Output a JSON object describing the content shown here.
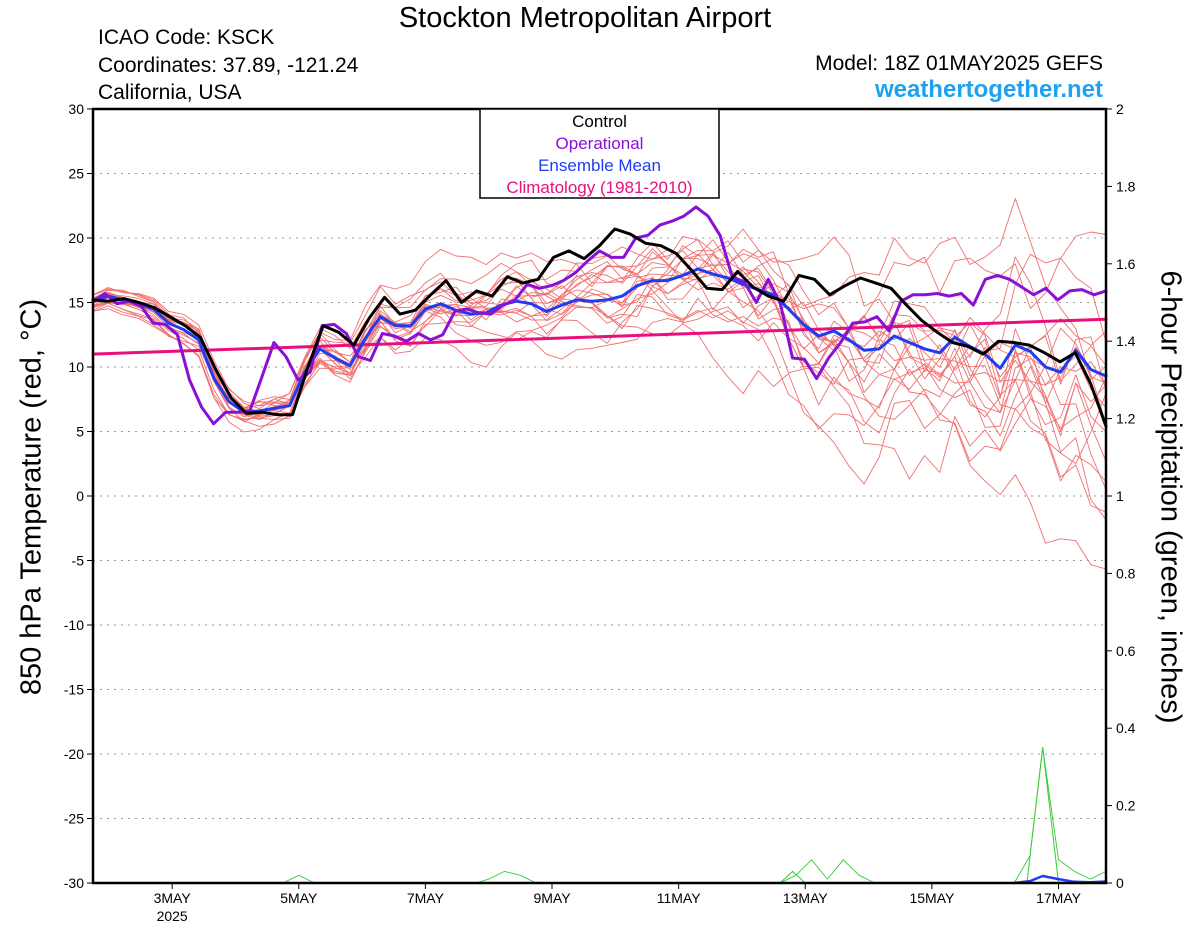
{
  "header": {
    "title": "Stockton Metropolitan Airport",
    "icao": "ICAO Code: KSCK",
    "coords": "Coordinates: 37.89, -121.24",
    "region": "California, USA",
    "model": "Model: 18Z 01MAY2025 GEFS",
    "site": "weathertogether.net"
  },
  "chart_data": {
    "type": "line",
    "title": "Stockton Metropolitan Airport",
    "ylabel": "850 hPa Temperature (red, °C)",
    "y2label": "6-hour Precipitation (green, inches)",
    "x_start_day": 1.75,
    "x_end_day": 17.75,
    "ylim": [
      -30,
      30
    ],
    "y_ticks": [
      30,
      25,
      20,
      15,
      10,
      5,
      0,
      -5,
      -10,
      -15,
      -20,
      -25,
      -30
    ],
    "y2lim": [
      0,
      2
    ],
    "y2_ticks": [
      2,
      1.8,
      1.6,
      1.4,
      1.2,
      1,
      0.8,
      0.6,
      0.4,
      0.2,
      0
    ],
    "x_ticks": [
      {
        "day": 3,
        "label": "3MAY",
        "sub": "2025"
      },
      {
        "day": 5,
        "label": "5MAY"
      },
      {
        "day": 7,
        "label": "7MAY"
      },
      {
        "day": 9,
        "label": "9MAY"
      },
      {
        "day": 11,
        "label": "11MAY"
      },
      {
        "day": 13,
        "label": "13MAY"
      },
      {
        "day": 15,
        "label": "15MAY"
      },
      {
        "day": 17,
        "label": "17MAY"
      }
    ],
    "legend": {
      "position": "top-center",
      "entries": [
        {
          "label": "Control",
          "color": "#000000"
        },
        {
          "label": "Operational",
          "color": "#8a10d6"
        },
        {
          "label": "Ensemble Mean",
          "color": "#1f3df0"
        },
        {
          "label": "Climatology (1981-2010)",
          "color": "#e8107e"
        }
      ]
    },
    "grid": "dotted horizontal",
    "colors": {
      "members": "#f07070",
      "control": "#000000",
      "operational": "#8a10d6",
      "mean": "#1f3df0",
      "climatology": "#e8107e",
      "precip": "#33cc33"
    },
    "control": [
      15.2,
      15.1,
      15.3,
      15.0,
      14.6,
      13.9,
      13.2,
      12.3,
      9.8,
      7.6,
      6.4,
      6.5,
      6.3,
      6.3,
      10.0,
      13.2,
      12.7,
      11.7,
      13.8,
      15.4,
      14.1,
      14.4,
      15.6,
      16.7,
      15.0,
      15.9,
      15.5,
      17.0,
      16.5,
      16.8,
      18.5,
      19.0,
      18.4,
      19.4,
      20.7,
      20.3,
      19.6,
      19.4,
      18.8,
      17.5,
      16.1,
      16.0,
      17.4,
      16.2,
      15.5,
      15.1,
      17.1,
      16.8,
      15.6,
      16.3,
      16.9,
      16.5,
      16.1,
      14.8,
      13.6,
      12.7,
      11.9,
      11.6,
      11.0,
      12.0,
      11.9,
      11.7,
      11.1,
      10.4,
      11.1,
      8.7,
      5.4
    ],
    "operational": [
      15.1,
      15.7,
      14.9,
      15.1,
      14.7,
      13.4,
      13.3,
      12.5,
      9.0,
      6.9,
      5.6,
      6.5,
      6.5,
      6.6,
      9.2,
      11.9,
      10.8,
      9.0,
      9.6,
      13.2,
      13.3,
      12.6,
      10.8,
      10.5,
      12.6,
      12.4,
      12.0,
      12.6,
      12.1,
      12.5,
      14.3,
      14.5,
      14.2,
      14.1,
      14.8,
      15.2,
      16.4,
      16.1,
      16.3,
      16.7,
      17.3,
      18.2,
      19.0,
      18.5,
      18.5,
      20.0,
      20.2,
      21.0,
      21.3,
      21.7,
      22.4,
      21.7,
      20.2,
      17.0,
      16.6,
      15.0,
      16.8,
      14.9,
      10.7,
      10.6,
      9.1,
      10.7,
      11.9,
      13.4,
      13.5,
      13.9,
      12.8,
      15.1,
      15.6,
      15.6,
      15.7,
      15.5,
      15.7,
      14.8,
      16.8,
      17.1,
      16.8,
      16.2,
      15.6,
      16.1,
      15.2,
      15.9,
      16.0,
      15.6,
      15.9
    ],
    "mean": [
      15.1,
      15.5,
      15.2,
      14.9,
      14.5,
      13.4,
      12.9,
      12.1,
      9.1,
      7.3,
      6.5,
      6.6,
      6.8,
      7.0,
      9.6,
      11.4,
      10.7,
      10.1,
      12.2,
      13.9,
      13.2,
      13.2,
      14.5,
      14.9,
      14.4,
      14.1,
      14.2,
      14.8,
      15.1,
      14.9,
      14.3,
      14.8,
      15.2,
      15.1,
      15.2,
      15.5,
      16.3,
      16.7,
      16.7,
      17.1,
      17.6,
      17.2,
      16.9,
      16.4,
      16.0,
      15.6,
      14.5,
      13.3,
      12.4,
      12.8,
      12.1,
      11.3,
      11.4,
      12.4,
      11.9,
      11.4,
      11.1,
      12.3,
      11.6,
      11.0,
      9.9,
      11.7,
      11.2,
      10.0,
      9.6,
      11.3,
      9.8,
      9.3
    ],
    "climatology_start": 11.0,
    "climatology_end": 13.7,
    "member_count": 20,
    "precip_operational": {
      "x": [
        1.75,
        2.5,
        3.0,
        3.25,
        3.5,
        5.5,
        5.75,
        6.0,
        8.0,
        8.25,
        8.5,
        12.6,
        12.8,
        13.0,
        13.2,
        13.4,
        13.6,
        13.8,
        14.0,
        16.5,
        16.75,
        17.0,
        17.25,
        17.5,
        17.75
      ],
      "y": [
        0,
        0,
        0,
        0,
        0,
        0,
        0,
        0,
        0,
        0,
        0,
        0,
        0.03,
        0,
        0,
        0,
        0,
        0,
        0,
        0,
        0.35,
        0,
        0,
        0,
        0
      ]
    },
    "precip_members": [
      {
        "x": [
          4.75,
          5.0,
          5.25,
          5.5
        ],
        "y": [
          0,
          0.02,
          0,
          0
        ]
      },
      {
        "x": [
          7.8,
          8.0,
          8.25,
          8.5,
          8.75
        ],
        "y": [
          0,
          0.01,
          0.03,
          0.02,
          0
        ]
      },
      {
        "x": [
          12.6,
          12.85,
          13.1,
          13.35,
          13.6,
          13.85,
          14.1
        ],
        "y": [
          0,
          0.02,
          0.06,
          0.01,
          0.06,
          0.02,
          0
        ]
      },
      {
        "x": [
          16.3,
          16.55,
          16.75,
          17.0,
          17.25,
          17.5,
          17.75
        ],
        "y": [
          0,
          0.07,
          0.35,
          0.06,
          0.03,
          0.01,
          0.03
        ]
      }
    ],
    "precip_mean": {
      "x": [
        16.3,
        16.55,
        16.75,
        17.0,
        17.25,
        17.5,
        17.75
      ],
      "y": [
        0,
        0.005,
        0.018,
        0.01,
        0.003,
        0.002,
        0.004
      ]
    }
  }
}
